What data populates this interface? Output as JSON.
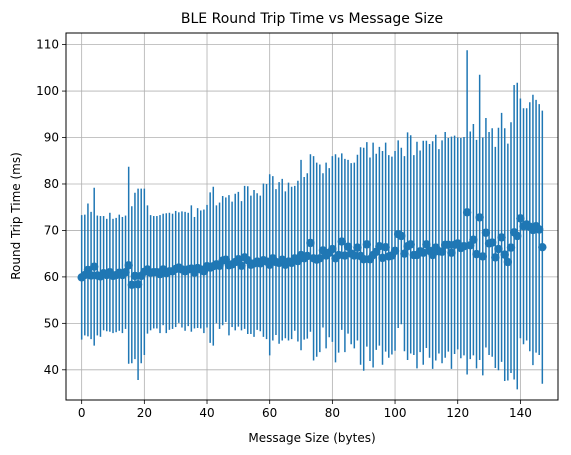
{
  "chart_data": {
    "type": "scatter",
    "title": "BLE Round Trip Time vs Message Size",
    "xlabel": "Message Size (bytes)",
    "ylabel": "Round Trip Time (ms)",
    "xlim": [
      -5,
      152
    ],
    "ylim": [
      33.5,
      112.5
    ],
    "x_ticks": [
      0,
      20,
      40,
      60,
      80,
      100,
      120,
      140
    ],
    "y_ticks": [
      40,
      50,
      60,
      70,
      80,
      90,
      100,
      110
    ],
    "grid": true,
    "color": "#1f77b4",
    "points": [
      [
        0,
        59.9,
        13.4
      ],
      [
        1,
        60.4,
        13.0
      ],
      [
        2,
        61.5,
        14.3
      ],
      [
        3,
        60.3,
        13.7
      ],
      [
        4,
        62.2,
        17.0
      ],
      [
        5,
        60.3,
        12.9
      ],
      [
        6,
        60.1,
        13.0
      ],
      [
        7,
        60.8,
        12.3
      ],
      [
        8,
        60.4,
        12.1
      ],
      [
        9,
        61.0,
        12.8
      ],
      [
        10,
        60.2,
        12.3
      ],
      [
        11,
        60.4,
        12.3
      ],
      [
        12,
        60.9,
        12.5
      ],
      [
        13,
        60.4,
        12.5
      ],
      [
        14,
        61.0,
        12.2
      ],
      [
        15,
        62.5,
        21.2
      ],
      [
        16,
        58.3,
        16.9
      ],
      [
        17,
        60.2,
        17.9
      ],
      [
        18,
        58.4,
        20.6
      ],
      [
        19,
        60.2,
        18.8
      ],
      [
        20,
        61.1,
        17.9
      ],
      [
        21,
        61.6,
        13.8
      ],
      [
        22,
        60.9,
        12.4
      ],
      [
        23,
        61.0,
        12.1
      ],
      [
        24,
        61.0,
        12.1
      ],
      [
        25,
        60.6,
        12.7
      ],
      [
        26,
        61.6,
        12.0
      ],
      [
        27,
        60.8,
        12.9
      ],
      [
        28,
        61.2,
        12.6
      ],
      [
        29,
        61.2,
        12.4
      ],
      [
        30,
        61.7,
        12.5
      ],
      [
        31,
        62.0,
        11.9
      ],
      [
        32,
        61.6,
        12.5
      ],
      [
        33,
        61.2,
        12.8
      ],
      [
        34,
        61.6,
        12.2
      ],
      [
        35,
        61.8,
        13.6
      ],
      [
        36,
        60.9,
        12.0
      ],
      [
        37,
        61.9,
        12.9
      ],
      [
        38,
        61.6,
        12.7
      ],
      [
        39,
        61.2,
        13.3
      ],
      [
        40,
        62.3,
        13.2
      ],
      [
        41,
        62.0,
        16.2
      ],
      [
        42,
        62.3,
        17.1
      ],
      [
        43,
        62.7,
        12.7
      ],
      [
        44,
        62.4,
        13.6
      ],
      [
        45,
        63.5,
        13.9
      ],
      [
        46,
        63.7,
        13.4
      ],
      [
        47,
        62.5,
        15.1
      ],
      [
        48,
        62.7,
        13.5
      ],
      [
        49,
        63.2,
        14.7
      ],
      [
        50,
        63.8,
        14.5
      ],
      [
        51,
        62.4,
        13.9
      ],
      [
        52,
        64.2,
        15.4
      ],
      [
        53,
        63.6,
        15.9
      ],
      [
        54,
        62.6,
        14.9
      ],
      [
        55,
        62.9,
        15.8
      ],
      [
        56,
        63.3,
        14.7
      ],
      [
        57,
        62.9,
        14.6
      ],
      [
        58,
        63.6,
        16.5
      ],
      [
        59,
        63.3,
        16.7
      ],
      [
        60,
        62.6,
        19.5
      ],
      [
        61,
        64.0,
        17.7
      ],
      [
        62,
        63.2,
        15.7
      ],
      [
        63,
        63.0,
        17.4
      ],
      [
        64,
        63.7,
        17.4
      ],
      [
        65,
        62.6,
        15.8
      ],
      [
        66,
        63.3,
        17.0
      ],
      [
        67,
        63.0,
        16.4
      ],
      [
        68,
        64.0,
        15.6
      ],
      [
        69,
        63.4,
        17.3
      ],
      [
        70,
        64.7,
        20.5
      ],
      [
        71,
        64.0,
        17.5
      ],
      [
        72,
        64.5,
        17.8
      ],
      [
        73,
        67.3,
        19.1
      ],
      [
        74,
        64.0,
        22.0
      ],
      [
        75,
        63.7,
        20.9
      ],
      [
        76,
        64.0,
        20.2
      ],
      [
        77,
        65.7,
        16.6
      ],
      [
        78,
        64.6,
        20.0
      ],
      [
        79,
        65.2,
        18.2
      ],
      [
        80,
        66.0,
        20.0
      ],
      [
        81,
        64.0,
        22.4
      ],
      [
        82,
        64.7,
        21.0
      ],
      [
        83,
        67.6,
        19.0
      ],
      [
        84,
        64.6,
        20.8
      ],
      [
        85,
        66.5,
        18.7
      ],
      [
        86,
        65.0,
        19.5
      ],
      [
        87,
        64.6,
        20.0
      ],
      [
        88,
        66.3,
        20.0
      ],
      [
        89,
        64.5,
        23.4
      ],
      [
        90,
        63.8,
        24.0
      ],
      [
        91,
        67.0,
        22.0
      ],
      [
        92,
        63.8,
        21.9
      ],
      [
        93,
        64.7,
        24.2
      ],
      [
        94,
        65.4,
        21.1
      ],
      [
        95,
        66.6,
        21.4
      ],
      [
        96,
        64.1,
        23.0
      ],
      [
        97,
        66.4,
        22.5
      ],
      [
        98,
        64.4,
        21.8
      ],
      [
        99,
        64.6,
        21.3
      ],
      [
        100,
        65.6,
        21.5
      ],
      [
        101,
        69.2,
        20.2
      ],
      [
        102,
        68.8,
        19.0
      ],
      [
        103,
        65.0,
        21.0
      ],
      [
        104,
        66.6,
        24.5
      ],
      [
        105,
        67.0,
        23.5
      ],
      [
        106,
        64.7,
        21.5
      ],
      [
        107,
        64.7,
        24.4
      ],
      [
        108,
        65.5,
        21.7
      ],
      [
        109,
        65.2,
        24.1
      ],
      [
        110,
        67.0,
        22.3
      ],
      [
        111,
        65.6,
        23.0
      ],
      [
        112,
        64.7,
        24.5
      ],
      [
        113,
        66.3,
        24.3
      ],
      [
        114,
        65.5,
        22.0
      ],
      [
        115,
        65.4,
        24.0
      ],
      [
        116,
        66.9,
        24.3
      ],
      [
        117,
        66.9,
        23.0
      ],
      [
        118,
        65.2,
        25.0
      ],
      [
        119,
        66.9,
        23.5
      ],
      [
        120,
        67.2,
        22.8
      ],
      [
        121,
        66.2,
        23.7
      ],
      [
        122,
        66.6,
        23.5
      ],
      [
        123,
        73.9,
        34.9
      ],
      [
        124,
        66.8,
        24.5
      ],
      [
        125,
        68.0,
        24.9
      ],
      [
        126,
        64.9,
        24.6
      ],
      [
        127,
        72.8,
        30.7
      ],
      [
        128,
        64.4,
        25.6
      ],
      [
        129,
        69.5,
        24.7
      ],
      [
        130,
        67.2,
        24.0
      ],
      [
        131,
        67.4,
        24.6
      ],
      [
        132,
        64.2,
        23.8
      ],
      [
        133,
        66.0,
        26.1
      ],
      [
        134,
        68.5,
        26.8
      ],
      [
        135,
        64.8,
        27.2
      ],
      [
        136,
        63.2,
        25.5
      ],
      [
        137,
        66.3,
        27.0
      ],
      [
        138,
        69.6,
        31.7
      ],
      [
        139,
        68.8,
        33.0
      ],
      [
        140,
        72.6,
        25.8
      ],
      [
        141,
        70.9,
        25.4
      ],
      [
        142,
        71.3,
        25.0
      ],
      [
        143,
        70.8,
        26.8
      ],
      [
        144,
        70.1,
        29.1
      ],
      [
        145,
        70.9,
        27.2
      ],
      [
        146,
        70.2,
        27.0
      ],
      [
        147,
        66.4,
        29.4
      ]
    ]
  }
}
